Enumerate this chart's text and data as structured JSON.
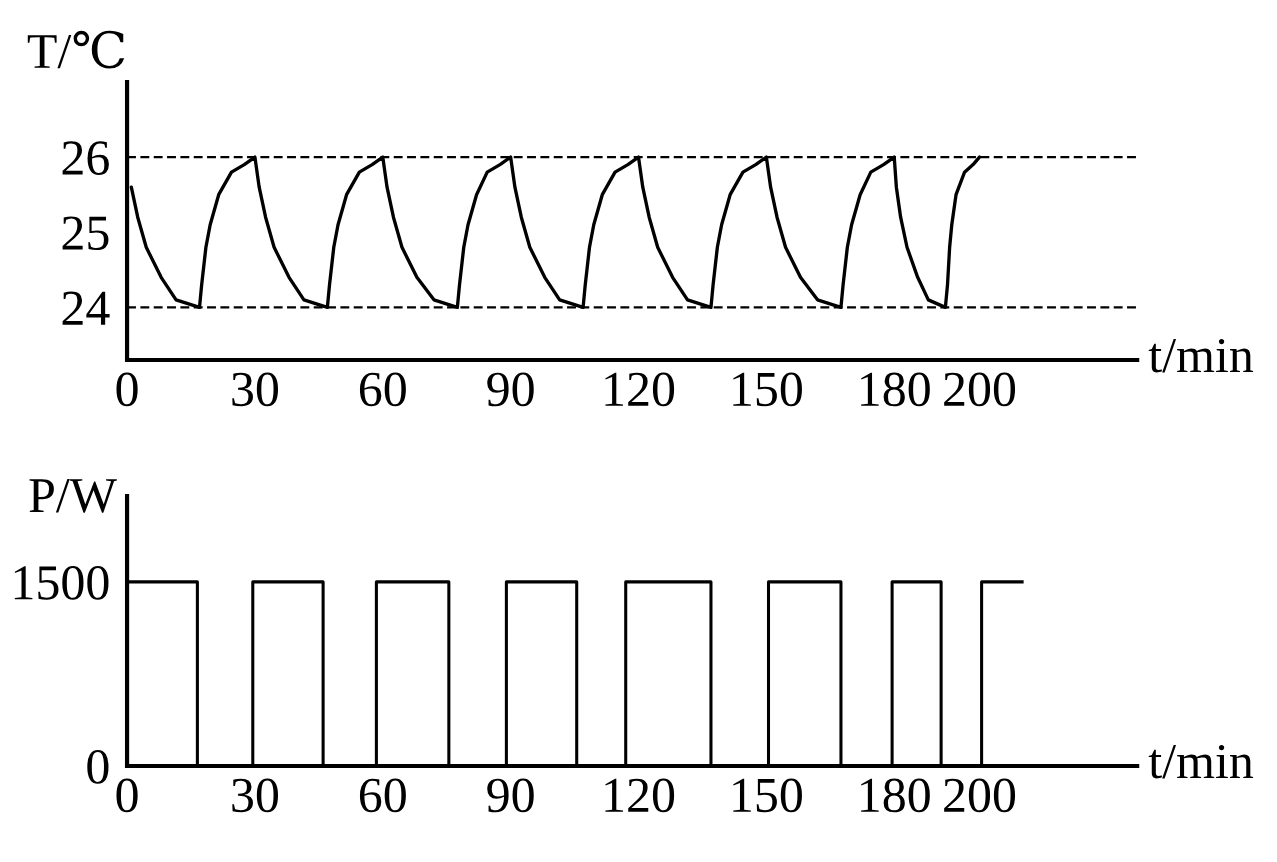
{
  "chart_data": [
    {
      "type": "line",
      "ylabel": "T/℃",
      "xlabel": "t/min",
      "xlim": [
        0,
        237
      ],
      "xticks": [
        0,
        30,
        60,
        90,
        120,
        150,
        180,
        200
      ],
      "ylim": [
        23.3,
        27
      ],
      "yticks": [
        24,
        25,
        26
      ],
      "ref_lines": [
        {
          "axis": "y",
          "value": 26,
          "color": "#000000",
          "line_style": "dashed"
        },
        {
          "axis": "y",
          "value": 24,
          "color": "#000000",
          "line_style": "dashed"
        }
      ],
      "series": [
        {
          "color": "#000000",
          "x": [
            1,
            2.5,
            4.5,
            8,
            11.5,
            17,
            17.5,
            18.5,
            19.5,
            21.5,
            24.5,
            27.5,
            30,
            31,
            32.5,
            34.5,
            38,
            41.5,
            47,
            47.5,
            48.5,
            49.5,
            51.5,
            54.5,
            57.5,
            60,
            61,
            62.5,
            64.5,
            68,
            72,
            77.5,
            78,
            79,
            80,
            82,
            84.5,
            87.5,
            90,
            91,
            92.5,
            94.5,
            98,
            101.5,
            107,
            107.5,
            108.5,
            109.5,
            111.5,
            114.5,
            117.5,
            120,
            121,
            122.5,
            124.5,
            128,
            131.5,
            137,
            137.5,
            138.5,
            139.5,
            141.5,
            144.5,
            147.5,
            150,
            151,
            152.5,
            154.5,
            158,
            162,
            167.5,
            168,
            169,
            170,
            172,
            174.5,
            177.5,
            180,
            180.5,
            181.5,
            183,
            185.5,
            188,
            192,
            192.5,
            193,
            193.5,
            194.5,
            196.5,
            198.5,
            200
          ],
          "values": [
            25.6,
            25.2,
            24.8,
            24.4,
            24.1,
            24,
            24.3,
            24.8,
            25.1,
            25.5,
            25.8,
            25.9,
            26,
            25.6,
            25.2,
            24.8,
            24.4,
            24.1,
            24,
            24.3,
            24.8,
            25.1,
            25.5,
            25.8,
            25.9,
            26,
            25.6,
            25.2,
            24.8,
            24.4,
            24.1,
            24,
            24.3,
            24.8,
            25.1,
            25.5,
            25.8,
            25.9,
            26,
            25.6,
            25.2,
            24.8,
            24.4,
            24.1,
            24,
            24.3,
            24.8,
            25.1,
            25.5,
            25.8,
            25.9,
            26,
            25.6,
            25.2,
            24.8,
            24.4,
            24.1,
            24,
            24.3,
            24.8,
            25.1,
            25.5,
            25.8,
            25.9,
            26,
            25.6,
            25.2,
            24.8,
            24.4,
            24.1,
            24,
            24.3,
            24.8,
            25.1,
            25.5,
            25.8,
            25.9,
            26,
            25.6,
            25.2,
            24.8,
            24.4,
            24.1,
            24,
            24.3,
            24.8,
            25.1,
            25.5,
            25.8,
            25.9,
            26
          ]
        }
      ]
    },
    {
      "type": "step",
      "ylabel": "P/W",
      "xlabel": "t/min",
      "xlim": [
        0,
        237
      ],
      "xticks": [
        0,
        30,
        60,
        90,
        120,
        150,
        180,
        200
      ],
      "ylim": [
        0,
        2200
      ],
      "yticks": [
        0,
        1500
      ],
      "series": [
        {
          "color": "#000000",
          "x": [
            0,
            16.5,
            29.5,
            46,
            58.5,
            75.5,
            89,
            105.5,
            117,
            137,
            150.5,
            167.5,
            179.5,
            191,
            200.5,
            210
          ],
          "values": [
            1500,
            0,
            1500,
            0,
            1500,
            0,
            1500,
            0,
            1500,
            0,
            1500,
            0,
            1500,
            0,
            1500,
            1500
          ]
        }
      ]
    }
  ]
}
